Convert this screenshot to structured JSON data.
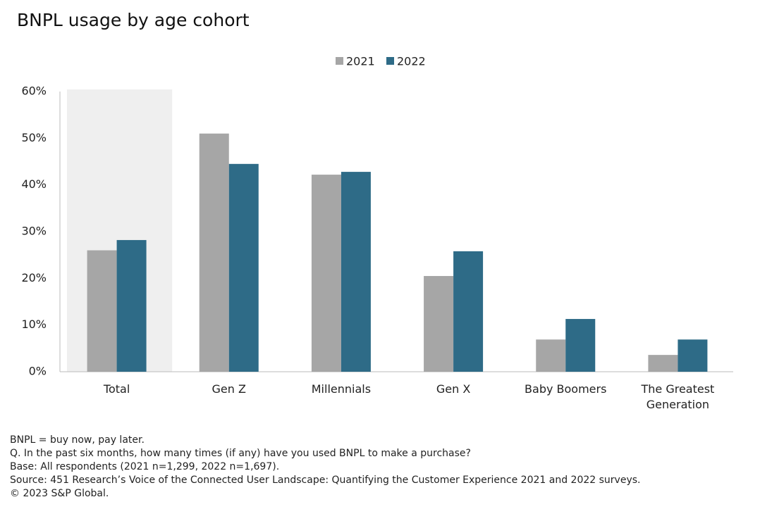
{
  "chart_data": {
    "type": "bar",
    "title": "BNPL usage by age cohort",
    "categories": [
      "Total",
      "Gen Z",
      "Millennials",
      "Gen X",
      "Baby Boomers",
      "The Greatest Generation"
    ],
    "series": [
      {
        "name": "2021",
        "color": "#a6a6a6",
        "values": [
          26,
          51,
          42.2,
          20.5,
          6.9,
          3.6
        ]
      },
      {
        "name": "2022",
        "color": "#2e6b87",
        "values": [
          28.2,
          44.5,
          42.8,
          25.8,
          11.3,
          6.9
        ]
      }
    ],
    "ylim": [
      0,
      60
    ],
    "yticks": [
      {
        "value": 0,
        "label": "0%"
      },
      {
        "value": 10,
        "label": "10%"
      },
      {
        "value": 20,
        "label": "20%"
      },
      {
        "value": 30,
        "label": "30%"
      },
      {
        "value": 40,
        "label": "40%"
      },
      {
        "value": 50,
        "label": "50%"
      },
      {
        "value": 60,
        "label": "60%"
      }
    ],
    "legend": "top",
    "notes": [
      "BNPL = buy now, pay later.",
      "Q. In the past six months, how many times (if any) have you used BNPL to make a purchase?",
      "Base: All respondents (2021 n=1,299, 2022 n=1,697).",
      "Source: 451 Research’s Voice of the Connected User Landscape: Quantifying the Customer Experience 2021 and 2022 surveys.",
      "© 2023 S&P Global."
    ]
  }
}
